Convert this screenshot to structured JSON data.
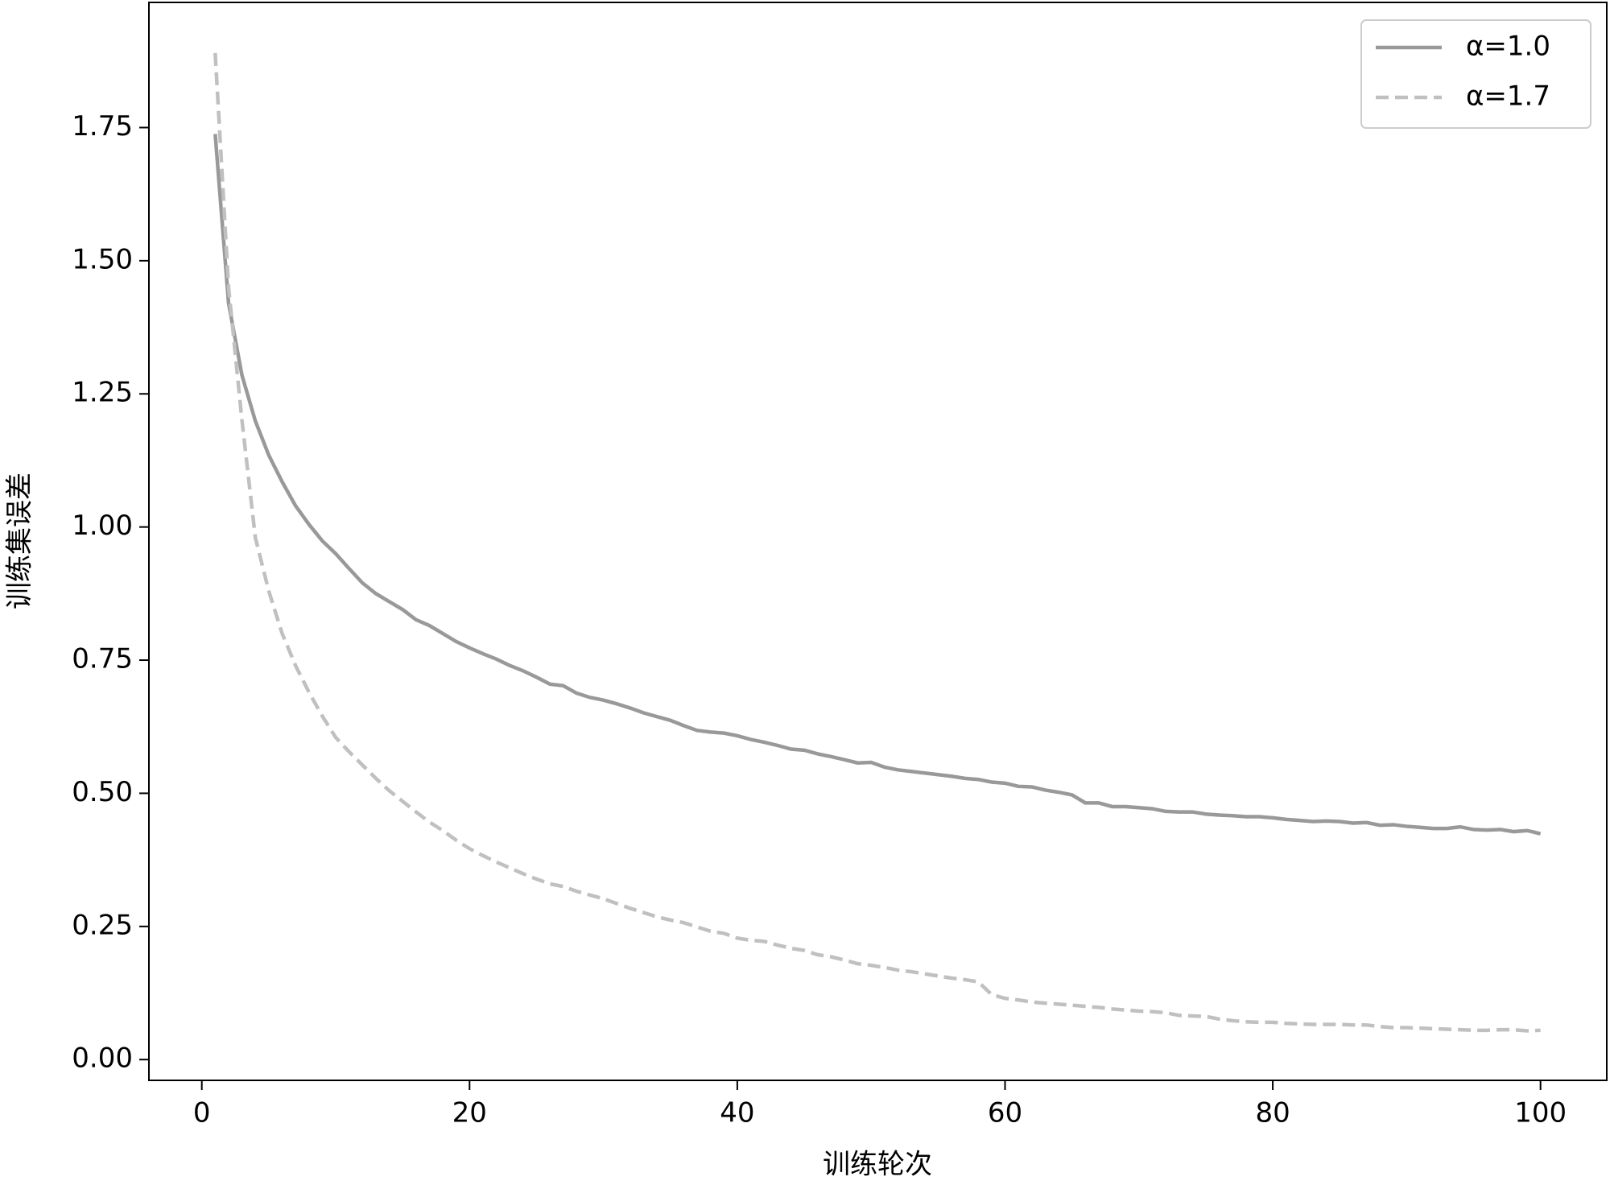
{
  "chart_data": {
    "type": "line",
    "xlabel": "训练轮次",
    "ylabel": "训练集误差",
    "x": [
      1,
      2,
      3,
      4,
      5,
      6,
      7,
      8,
      9,
      10,
      11,
      12,
      13,
      14,
      15,
      16,
      17,
      18,
      19,
      20,
      21,
      22,
      23,
      24,
      25,
      26,
      27,
      28,
      29,
      30,
      31,
      32,
      33,
      34,
      35,
      36,
      37,
      38,
      39,
      40,
      41,
      42,
      43,
      44,
      45,
      46,
      47,
      48,
      49,
      50,
      51,
      52,
      53,
      54,
      55,
      56,
      57,
      58,
      59,
      60,
      61,
      62,
      63,
      64,
      65,
      66,
      67,
      68,
      69,
      70,
      71,
      72,
      73,
      74,
      75,
      76,
      77,
      78,
      79,
      80,
      81,
      82,
      83,
      84,
      85,
      86,
      87,
      88,
      89,
      90,
      91,
      92,
      93,
      94,
      95,
      96,
      97,
      98,
      99,
      100
    ],
    "series": [
      {
        "name": "α=1.0",
        "color": "#999999",
        "dash": false,
        "values": [
          1.738,
          1.42,
          1.285,
          1.199,
          1.135,
          1.085,
          1.04,
          1.005,
          0.974,
          0.95,
          0.922,
          0.895,
          0.875,
          0.86,
          0.845,
          0.826,
          0.815,
          0.8,
          0.785,
          0.773,
          0.762,
          0.752,
          0.74,
          0.73,
          0.718,
          0.705,
          0.702,
          0.688,
          0.68,
          0.675,
          0.668,
          0.66,
          0.651,
          0.644,
          0.637,
          0.627,
          0.618,
          0.615,
          0.613,
          0.608,
          0.601,
          0.596,
          0.59,
          0.583,
          0.581,
          0.574,
          0.569,
          0.563,
          0.557,
          0.558,
          0.549,
          0.544,
          0.541,
          0.538,
          0.535,
          0.532,
          0.528,
          0.526,
          0.521,
          0.519,
          0.513,
          0.512,
          0.506,
          0.502,
          0.497,
          0.482,
          0.482,
          0.475,
          0.475,
          0.473,
          0.471,
          0.466,
          0.465,
          0.465,
          0.461,
          0.459,
          0.458,
          0.456,
          0.456,
          0.454,
          0.451,
          0.449,
          0.447,
          0.448,
          0.447,
          0.444,
          0.445,
          0.44,
          0.441,
          0.438,
          0.436,
          0.434,
          0.434,
          0.437,
          0.432,
          0.431,
          0.432,
          0.428,
          0.43,
          0.424
        ]
      },
      {
        "name": "α=1.7",
        "color": "#c0c0c0",
        "dash": true,
        "values": [
          1.89,
          1.45,
          1.2,
          0.98,
          0.88,
          0.8,
          0.74,
          0.69,
          0.645,
          0.605,
          0.578,
          0.553,
          0.528,
          0.505,
          0.485,
          0.465,
          0.446,
          0.43,
          0.412,
          0.396,
          0.383,
          0.371,
          0.36,
          0.349,
          0.339,
          0.33,
          0.325,
          0.316,
          0.309,
          0.302,
          0.293,
          0.284,
          0.276,
          0.268,
          0.262,
          0.257,
          0.249,
          0.241,
          0.237,
          0.228,
          0.224,
          0.222,
          0.215,
          0.209,
          0.205,
          0.197,
          0.193,
          0.187,
          0.18,
          0.177,
          0.173,
          0.168,
          0.165,
          0.161,
          0.157,
          0.153,
          0.15,
          0.146,
          0.122,
          0.115,
          0.112,
          0.108,
          0.106,
          0.104,
          0.102,
          0.1,
          0.098,
          0.095,
          0.093,
          0.091,
          0.09,
          0.088,
          0.083,
          0.082,
          0.081,
          0.076,
          0.073,
          0.071,
          0.07,
          0.07,
          0.068,
          0.067,
          0.066,
          0.066,
          0.066,
          0.065,
          0.065,
          0.062,
          0.06,
          0.06,
          0.059,
          0.058,
          0.057,
          0.056,
          0.055,
          0.055,
          0.056,
          0.056,
          0.054,
          0.055
        ]
      }
    ],
    "xlim": [
      -3.95,
      104.95
    ],
    "ylim": [
      -0.039,
      1.985
    ],
    "xticks": [
      0,
      20,
      40,
      60,
      80,
      100
    ],
    "yticks": [
      {
        "value": 0,
        "label": "0.00"
      },
      0.25,
      {
        "value": 0.5,
        "label": "0.50"
      },
      0.75,
      {
        "value": 1,
        "label": "1.00"
      },
      1.25,
      {
        "value": 1.5,
        "label": "1.50"
      },
      1.75
    ],
    "legend": "upper right",
    "grid": false
  }
}
